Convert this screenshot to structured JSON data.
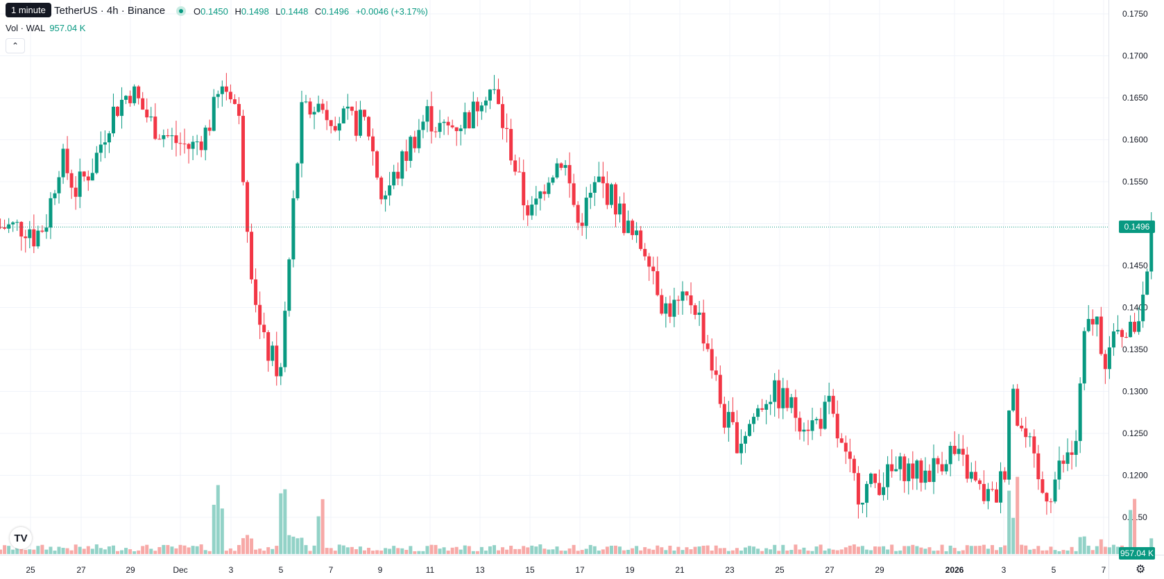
{
  "header": {
    "tooltip": "1 minute",
    "symbol_title": "TetherUS · 4h · Binance",
    "ohlc": {
      "o_label": "O",
      "o": "0.1450",
      "h_label": "H",
      "h": "0.1498",
      "l_label": "L",
      "l": "0.1448",
      "c_label": "C",
      "c": "0.1496",
      "change": "+0.0046 (+3.17%)"
    },
    "volume_label": "Vol · WAL",
    "volume_value": "957.04 K",
    "collapse_icon": "chevron-up-icon"
  },
  "price_axis": {
    "ticks": [
      "0.1750",
      "0.1700",
      "0.1650",
      "0.1600",
      "0.1550",
      "0.1500",
      "0.1450",
      "0.1400",
      "0.1350",
      "0.1300",
      "0.1250",
      "0.1200",
      "0.1150"
    ],
    "current_price": "0.1496",
    "volume_tag": "957.04 K"
  },
  "time_axis": {
    "labels": [
      "25",
      "27",
      "29",
      "Dec",
      "3",
      "5",
      "7",
      "9",
      "11",
      "13",
      "15",
      "17",
      "19",
      "21",
      "23",
      "25",
      "27",
      "29",
      "2026",
      "3",
      "5",
      "7"
    ]
  },
  "chart_data": {
    "type": "candlestick",
    "interval": "4h",
    "ylim": [
      0.1125,
      0.1765
    ],
    "last_price": 0.1496,
    "x_range_days": [
      "Nov 24",
      "Jan 7"
    ],
    "anchors_close_by_day_offset": [
      [
        0,
        0.148
      ],
      [
        0.6,
        0.15
      ],
      [
        1.2,
        0.158
      ],
      [
        1.8,
        0.154
      ],
      [
        2.5,
        0.157
      ],
      [
        3.2,
        0.163
      ],
      [
        4.0,
        0.166
      ],
      [
        4.8,
        0.162
      ],
      [
        5.6,
        0.16
      ],
      [
        6.4,
        0.159
      ],
      [
        7.0,
        0.161
      ],
      [
        7.6,
        0.166
      ],
      [
        8.0,
        0.166
      ],
      [
        8.3,
        0.162
      ],
      [
        8.8,
        0.145
      ],
      [
        9.2,
        0.136
      ],
      [
        9.6,
        0.134
      ],
      [
        10.0,
        0.132
      ],
      [
        10.4,
        0.15
      ],
      [
        10.8,
        0.163
      ],
      [
        11.4,
        0.164
      ],
      [
        12.0,
        0.163
      ],
      [
        12.8,
        0.162
      ],
      [
        13.4,
        0.162
      ],
      [
        14.0,
        0.153
      ],
      [
        14.6,
        0.156
      ],
      [
        15.2,
        0.16
      ],
      [
        15.8,
        0.163
      ],
      [
        16.4,
        0.161
      ],
      [
        17.0,
        0.162
      ],
      [
        17.6,
        0.163
      ],
      [
        18.0,
        0.166
      ],
      [
        18.4,
        0.166
      ],
      [
        18.8,
        0.162
      ],
      [
        19.2,
        0.158
      ],
      [
        19.6,
        0.153
      ],
      [
        20.0,
        0.151
      ],
      [
        20.6,
        0.156
      ],
      [
        21.2,
        0.158
      ],
      [
        21.8,
        0.15
      ],
      [
        22.6,
        0.155
      ],
      [
        23.2,
        0.153
      ],
      [
        24.0,
        0.148
      ],
      [
        24.6,
        0.147
      ],
      [
        25.2,
        0.14
      ],
      [
        25.8,
        0.14
      ],
      [
        26.4,
        0.141
      ],
      [
        27.0,
        0.135
      ],
      [
        27.6,
        0.127
      ],
      [
        28.2,
        0.124
      ],
      [
        28.8,
        0.127
      ],
      [
        29.4,
        0.13
      ],
      [
        30.0,
        0.129
      ],
      [
        30.6,
        0.127
      ],
      [
        31.2,
        0.126
      ],
      [
        31.8,
        0.128
      ],
      [
        32.4,
        0.122
      ],
      [
        33.0,
        0.118
      ],
      [
        33.6,
        0.119
      ],
      [
        34.2,
        0.12
      ],
      [
        34.8,
        0.121
      ],
      [
        35.4,
        0.12
      ],
      [
        36.0,
        0.121
      ],
      [
        36.6,
        0.123
      ],
      [
        37.2,
        0.121
      ],
      [
        37.8,
        0.118
      ],
      [
        38.4,
        0.117
      ],
      [
        38.8,
        0.121
      ],
      [
        39.0,
        0.13
      ],
      [
        39.4,
        0.126
      ],
      [
        39.8,
        0.123
      ],
      [
        40.2,
        0.118
      ],
      [
        40.6,
        0.118
      ],
      [
        41.0,
        0.121
      ],
      [
        41.6,
        0.123
      ],
      [
        42.0,
        0.137
      ],
      [
        42.4,
        0.139
      ],
      [
        42.8,
        0.134
      ],
      [
        43.2,
        0.136
      ],
      [
        43.6,
        0.138
      ],
      [
        44.0,
        0.136
      ],
      [
        44.4,
        0.145
      ],
      [
        44.7,
        0.1496
      ]
    ],
    "volume_spike_days": [
      7.5,
      10.0,
      11.5,
      39.1,
      43.9
    ]
  },
  "colors": {
    "up": "#089981",
    "down": "#f23645",
    "up_volume": "#92d2c7",
    "down_volume": "#f7a9a7",
    "grid": "#f0f3fa",
    "axis_text": "#131722"
  }
}
